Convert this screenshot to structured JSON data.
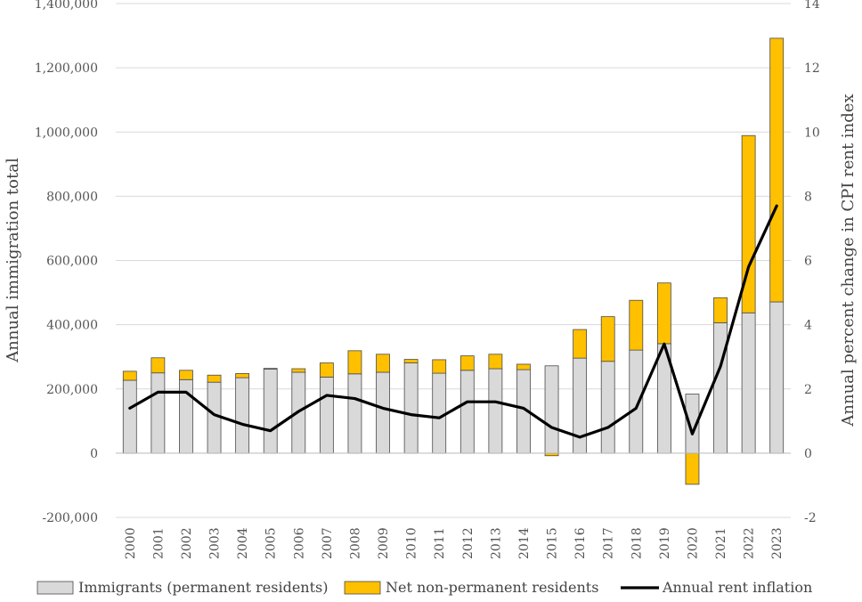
{
  "chart_data": {
    "type": "bar",
    "stacked": true,
    "categories": [
      "2000",
      "2001",
      "2002",
      "2003",
      "2004",
      "2005",
      "2006",
      "2007",
      "2008",
      "2009",
      "2010",
      "2011",
      "2012",
      "2013",
      "2014",
      "2015",
      "2016",
      "2017",
      "2018",
      "2019",
      "2020",
      "2021",
      "2022",
      "2023"
    ],
    "series": [
      {
        "name": "Immigrants (permanent residents)",
        "kind": "bar",
        "axis": "left",
        "color": "#d9d9d9",
        "values": [
          227000,
          250000,
          229000,
          221000,
          235000,
          262000,
          252000,
          237000,
          247000,
          252000,
          281000,
          249000,
          258000,
          263000,
          260000,
          272000,
          296000,
          286000,
          321000,
          341000,
          184000,
          406000,
          437000,
          471000
        ]
      },
      {
        "name": "Net non-permanent residents",
        "kind": "bar",
        "axis": "left",
        "color": "#ffc000",
        "values": [
          28000,
          47000,
          29000,
          22000,
          13000,
          2000,
          11000,
          44000,
          72000,
          56000,
          11000,
          42000,
          45000,
          45000,
          17000,
          -8000,
          89000,
          139000,
          155000,
          189000,
          -97000,
          78000,
          552000,
          821000
        ]
      },
      {
        "name": "Annual rent inflation",
        "kind": "line",
        "axis": "right",
        "color": "#000000",
        "values": [
          1.4,
          1.9,
          1.9,
          1.2,
          0.9,
          0.7,
          1.3,
          1.8,
          1.7,
          1.4,
          1.2,
          1.1,
          1.6,
          1.6,
          1.4,
          0.8,
          0.5,
          0.8,
          1.4,
          3.4,
          0.6,
          2.7,
          5.8,
          7.7
        ]
      }
    ],
    "ylabel": "Annual immigration total",
    "y2label": "Annual percent change in CPI rent index",
    "ylim": [
      -200000,
      1400000
    ],
    "y2lim": [
      -2,
      14
    ],
    "yticks": [
      "1,400,000",
      "1,200,000",
      "1,000,000",
      "800,000",
      "600,000",
      "400,000",
      "200,000",
      "0",
      "-200,000"
    ],
    "y2ticks": [
      "14",
      "12",
      "10",
      "8",
      "6",
      "4",
      "2",
      "0",
      "-2"
    ],
    "legend_position": "bottom",
    "grid": true
  }
}
